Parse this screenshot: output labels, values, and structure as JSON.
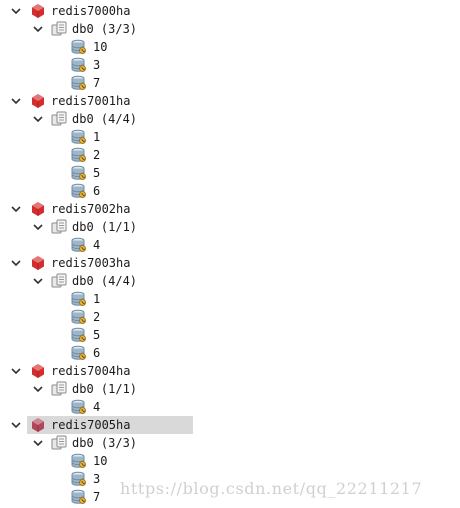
{
  "tree": [
    {
      "name": "redis7000ha",
      "selected": false,
      "dbs": [
        {
          "label": "db0 (3/3)",
          "keys": [
            "10",
            "3",
            "7"
          ]
        }
      ]
    },
    {
      "name": "redis7001ha",
      "selected": false,
      "dbs": [
        {
          "label": "db0 (4/4)",
          "keys": [
            "1",
            "2",
            "5",
            "6"
          ]
        }
      ]
    },
    {
      "name": "redis7002ha",
      "selected": false,
      "dbs": [
        {
          "label": "db0 (1/1)",
          "keys": [
            "4"
          ]
        }
      ]
    },
    {
      "name": "redis7003ha",
      "selected": false,
      "dbs": [
        {
          "label": "db0 (4/4)",
          "keys": [
            "1",
            "2",
            "5",
            "6"
          ]
        }
      ]
    },
    {
      "name": "redis7004ha",
      "selected": false,
      "dbs": [
        {
          "label": "db0 (1/1)",
          "keys": [
            "4"
          ]
        }
      ]
    },
    {
      "name": "redis7005ha",
      "selected": true,
      "dbs": [
        {
          "label": "db0 (3/3)",
          "keys": [
            "10",
            "3",
            "7"
          ]
        }
      ]
    }
  ],
  "watermark": "https://blog.csdn.net/qq_22211217",
  "colors": {
    "server_icon": "#d42d2d",
    "server_icon_selected": "#b0465a",
    "selection_bg": "#d9d9d9",
    "key_icon": "#9fb6c9",
    "key_badge": "#e6b84a",
    "text": "#1a1a1a"
  }
}
